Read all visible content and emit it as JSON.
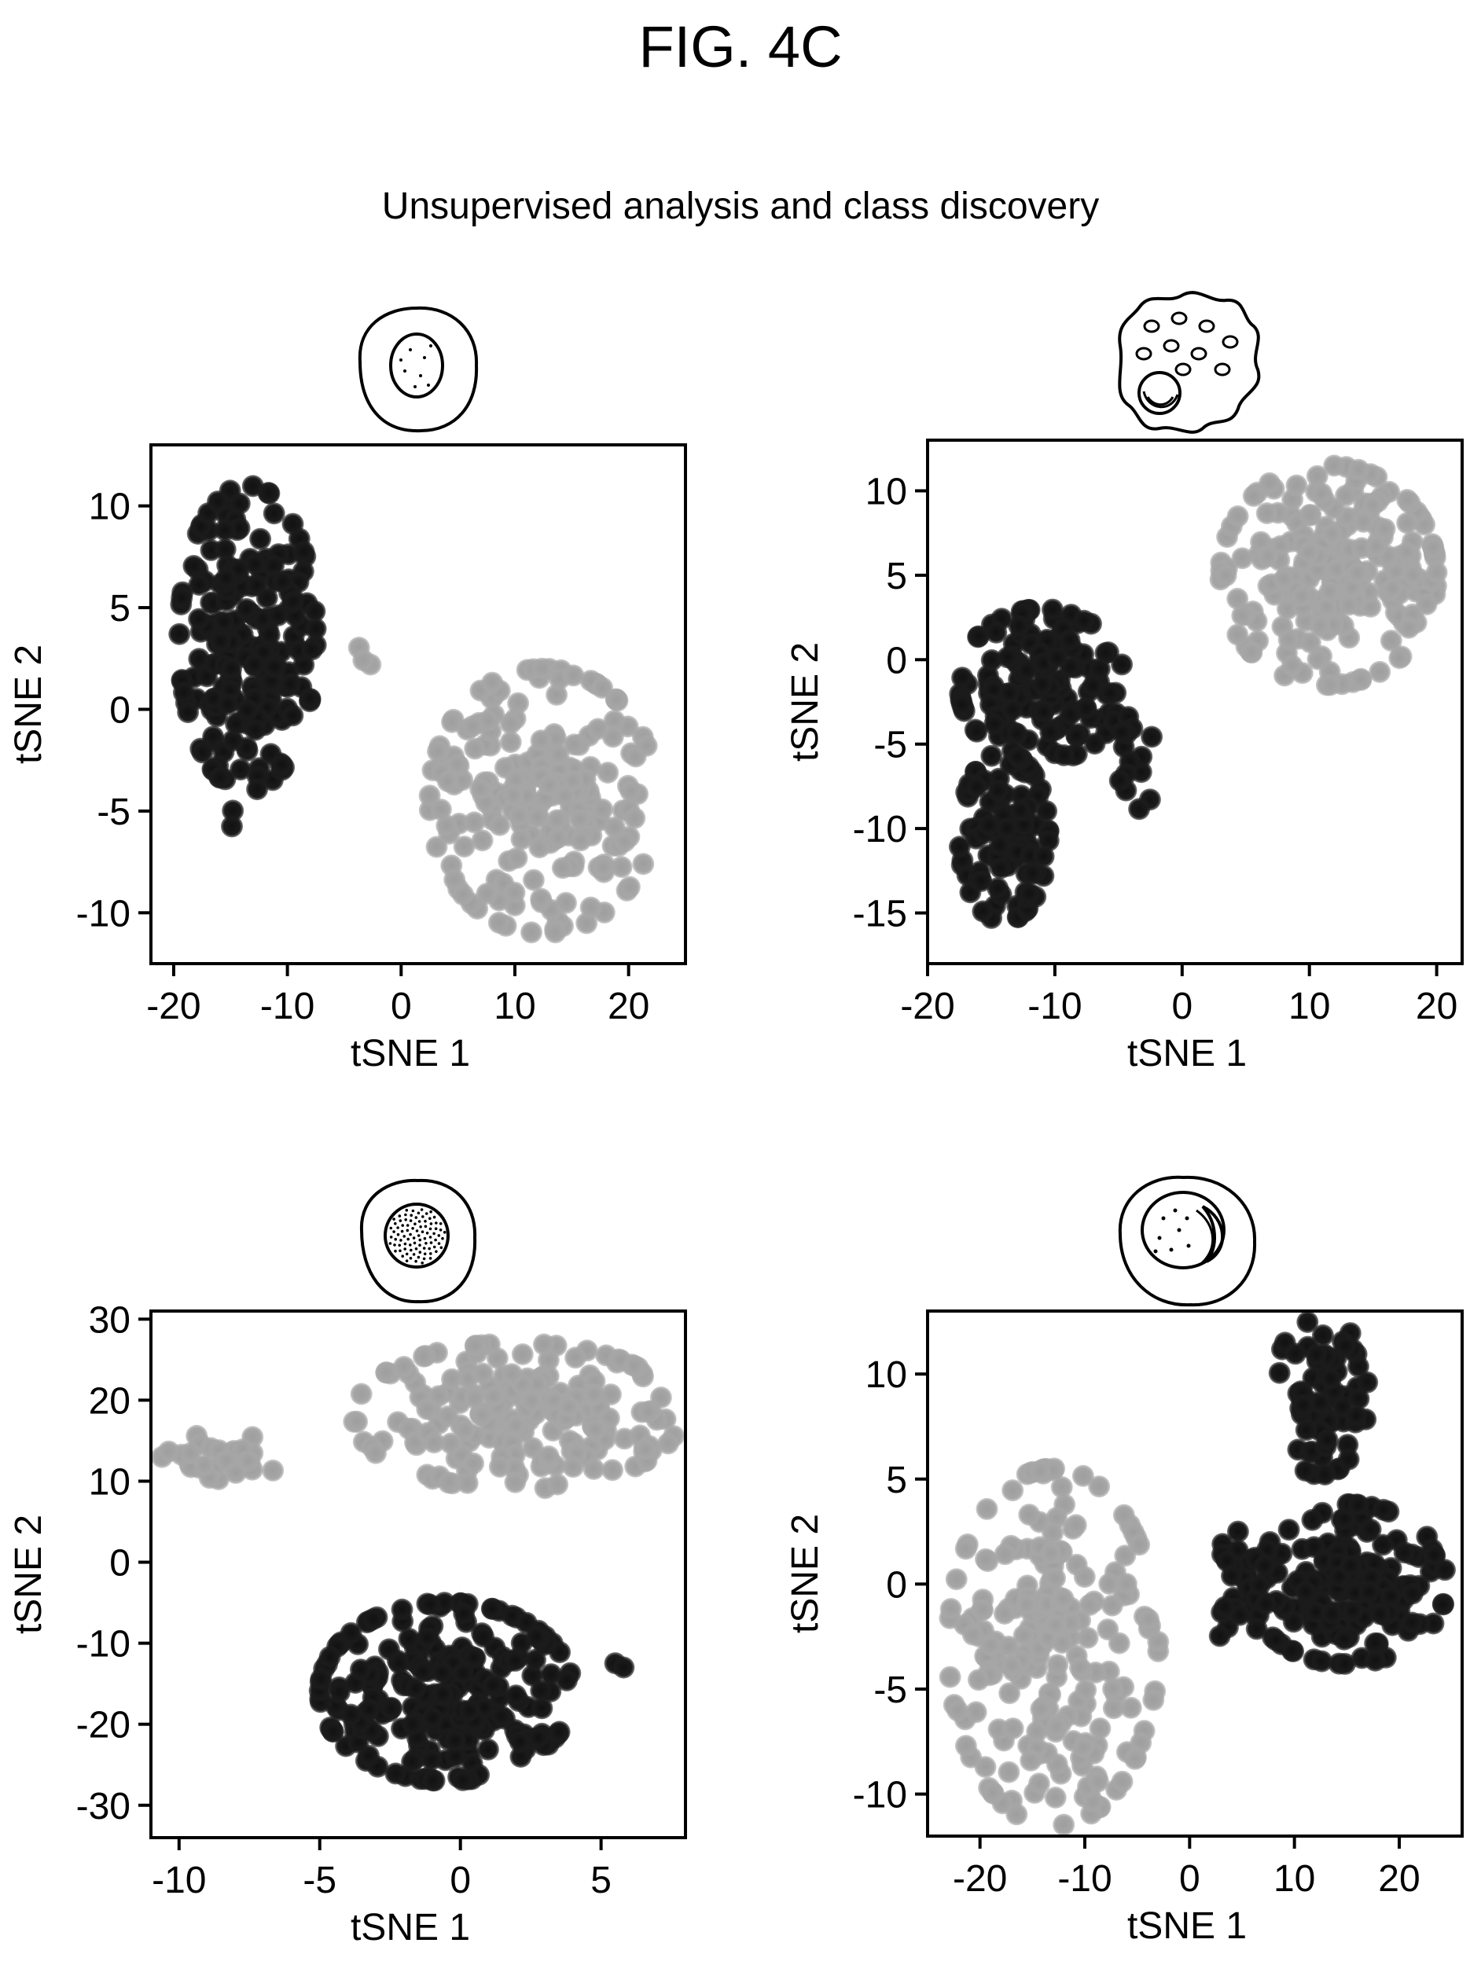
{
  "figure": {
    "title": "FIG. 4C",
    "subtitle": "Unsupervised analysis and class discovery"
  },
  "colors": {
    "cluster_a": "#1b1b1b",
    "cluster_b": "#a6a6a6",
    "axis": "#000000"
  },
  "icons": [
    "cell-round-nucleus-icon",
    "cell-granular-icon",
    "cell-dense-nucleus-icon",
    "cell-crescent-nucleus-icon"
  ],
  "chart_data": [
    {
      "type": "scatter",
      "icon": "cell-round-nucleus-icon",
      "xlabel": "tSNE 1",
      "ylabel": "tSNE 2",
      "xlim": [
        -22,
        25
      ],
      "ylim": [
        -12.5,
        13
      ],
      "xticks": [
        -20,
        -10,
        0,
        10,
        20
      ],
      "yticks": [
        -10,
        -5,
        0,
        5,
        10
      ],
      "series": [
        {
          "color": "#1b1b1b",
          "clusters": [
            {
              "cx": -13.5,
              "cy": 3.5,
              "rx": 6.0,
              "ry": 7.5,
              "n": 210,
              "seed": 11
            },
            {
              "cx": -14.5,
              "cy": -5.5,
              "rx": 0.6,
              "ry": 0.6,
              "n": 2,
              "seed": 12
            }
          ]
        },
        {
          "color": "#a6a6a6",
          "clusters": [
            {
              "cx": 12.5,
              "cy": -4.5,
              "rx": 10.0,
              "ry": 6.5,
              "n": 210,
              "seed": 13
            },
            {
              "cx": -3.0,
              "cy": 2.8,
              "rx": 0.8,
              "ry": 0.8,
              "n": 3,
              "seed": 14
            }
          ]
        }
      ]
    },
    {
      "type": "scatter",
      "icon": "cell-granular-icon",
      "xlabel": "tSNE 1",
      "ylabel": "tSNE 2",
      "xlim": [
        -20,
        22
      ],
      "ylim": [
        -18,
        13
      ],
      "xticks": [
        -20,
        -10,
        0,
        10,
        20
      ],
      "yticks": [
        -15,
        -10,
        -5,
        0,
        5,
        10
      ],
      "series": [
        {
          "color": "#1b1b1b",
          "clusters": [
            {
              "cx": -11.0,
              "cy": -1.5,
              "rx": 6.5,
              "ry": 4.5,
              "n": 150,
              "seed": 21
            },
            {
              "cx": -14.0,
              "cy": -10.5,
              "rx": 3.5,
              "ry": 5.0,
              "n": 100,
              "seed": 22
            },
            {
              "cx": -3.5,
              "cy": -6.0,
              "rx": 1.5,
              "ry": 3.0,
              "n": 14,
              "seed": 23
            }
          ]
        },
        {
          "color": "#a6a6a6",
          "clusters": [
            {
              "cx": 11.5,
              "cy": 5.0,
              "rx": 8.5,
              "ry": 6.5,
              "n": 230,
              "seed": 24
            }
          ]
        }
      ]
    },
    {
      "type": "scatter",
      "icon": "cell-dense-nucleus-icon",
      "xlabel": "tSNE 1",
      "ylabel": "tSNE 2",
      "xlim": [
        -11,
        8
      ],
      "ylim": [
        -34,
        31
      ],
      "xticks": [
        -10,
        -5,
        0,
        5
      ],
      "yticks": [
        -30,
        -20,
        -10,
        0,
        10,
        20,
        30
      ],
      "series": [
        {
          "color": "#a6a6a6",
          "clusters": [
            {
              "cx": 2.0,
              "cy": 18.0,
              "rx": 5.8,
              "ry": 9.0,
              "n": 200,
              "seed": 31
            },
            {
              "cx": -8.5,
              "cy": 13.0,
              "rx": 2.3,
              "ry": 2.8,
              "n": 30,
              "seed": 32
            }
          ]
        },
        {
          "color": "#1b1b1b",
          "clusters": [
            {
              "cx": -0.5,
              "cy": -16.0,
              "rx": 4.5,
              "ry": 11.0,
              "n": 230,
              "seed": 33
            },
            {
              "cx": 5.6,
              "cy": -13.0,
              "rx": 0.2,
              "ry": 0.6,
              "n": 2,
              "seed": 34
            }
          ]
        }
      ]
    },
    {
      "type": "scatter",
      "icon": "cell-crescent-nucleus-icon",
      "xlabel": "tSNE 1",
      "ylabel": "tSNE 2",
      "xlim": [
        -25,
        26
      ],
      "ylim": [
        -12,
        13
      ],
      "xticks": [
        -20,
        -10,
        0,
        10,
        20
      ],
      "yticks": [
        -10,
        -5,
        0,
        5,
        10
      ],
      "series": [
        {
          "color": "#a6a6a6",
          "clusters": [
            {
              "cx": -13.0,
              "cy": -3.0,
              "rx": 10.0,
              "ry": 8.5,
              "n": 220,
              "seed": 41
            }
          ]
        },
        {
          "color": "#1b1b1b",
          "clusters": [
            {
              "cx": 12.5,
              "cy": 9.0,
              "rx": 4.5,
              "ry": 3.8,
              "n": 70,
              "seed": 42
            },
            {
              "cx": 15.0,
              "cy": 0.0,
              "rx": 9.5,
              "ry": 3.8,
              "n": 170,
              "seed": 43
            },
            {
              "cx": 4.5,
              "cy": -0.5,
              "rx": 3.0,
              "ry": 3.0,
              "n": 25,
              "seed": 44
            }
          ]
        }
      ]
    }
  ]
}
